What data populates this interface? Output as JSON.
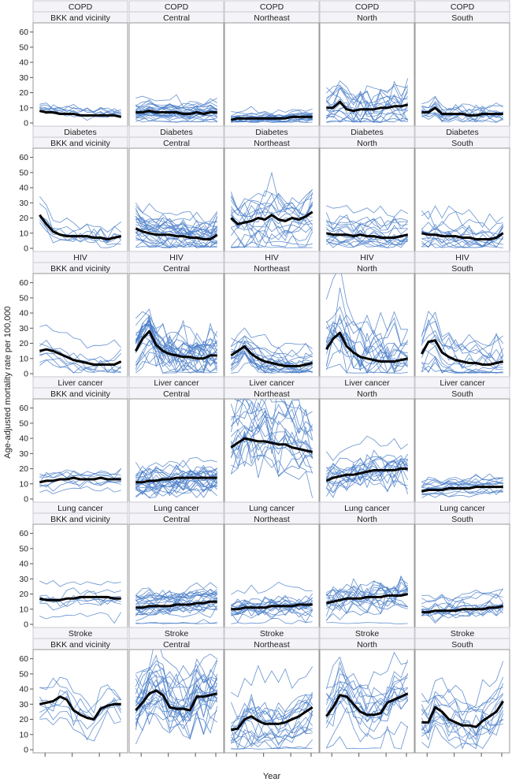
{
  "chart_data": {
    "type": "line",
    "layout": "small-multiples",
    "xlabel": "Year",
    "ylabel": "Age-adjusted mortality rate per 100,000",
    "ylim": [
      0,
      65
    ],
    "yticks": [
      0,
      10,
      20,
      30,
      40,
      50,
      60
    ],
    "x": [
      1,
      2,
      3,
      4,
      5,
      6,
      7,
      8,
      9,
      10,
      11,
      12,
      13
    ],
    "xtick_positions": [
      1.8,
      5.8,
      9.8,
      12.8
    ],
    "grid": false,
    "colors": {
      "province_lines": "#4a7ec8",
      "regional_mean": "#000000",
      "panel_border": "#999999",
      "strip_fill": "#f4f4f8"
    },
    "diseases": [
      "COPD",
      "Diabetes",
      "HIV",
      "Liver cancer",
      "Lung cancer",
      "Stroke"
    ],
    "regions": [
      "BKK and vicinity",
      "Central",
      "Northeast",
      "North",
      "South"
    ],
    "panels": [
      [
        {
          "disease": "COPD",
          "region": "BKK and vicinity",
          "provinces": 8,
          "spread": 2.5,
          "mean": [
            8,
            7,
            7,
            6,
            6,
            6,
            5,
            5,
            5,
            5,
            5,
            5,
            4
          ]
        },
        {
          "disease": "COPD",
          "region": "Central",
          "provinces": 25,
          "spread": 2.5,
          "mean": [
            7,
            7,
            8,
            7,
            7,
            7,
            7,
            6,
            6,
            7,
            6,
            7,
            7
          ]
        },
        {
          "disease": "COPD",
          "region": "Northeast",
          "provinces": 19,
          "spread": 2,
          "mean": [
            2,
            3,
            3,
            3,
            3,
            3,
            3,
            3,
            3,
            4,
            4,
            4,
            4
          ]
        },
        {
          "disease": "COPD",
          "region": "North",
          "provinces": 17,
          "spread": 8,
          "mean": [
            10,
            10,
            14,
            9,
            8,
            9,
            9,
            9,
            10,
            10,
            11,
            11,
            12
          ]
        },
        {
          "disease": "COPD",
          "region": "South",
          "provinces": 14,
          "spread": 3.5,
          "mean": [
            7,
            7,
            10,
            6,
            6,
            6,
            6,
            5,
            5,
            6,
            6,
            6,
            6
          ]
        }
      ],
      [
        {
          "disease": "Diabetes",
          "region": "BKK and vicinity",
          "provinces": 8,
          "spread": 4,
          "mean": [
            22,
            16,
            11,
            9,
            8,
            8,
            8,
            8,
            7,
            7,
            6,
            7,
            8
          ]
        },
        {
          "disease": "Diabetes",
          "region": "Central",
          "provinces": 25,
          "spread": 5,
          "mean": [
            13,
            11,
            10,
            9,
            9,
            9,
            8,
            8,
            7,
            7,
            6,
            6,
            9
          ]
        },
        {
          "disease": "Diabetes",
          "region": "Northeast",
          "provinces": 19,
          "spread": 9,
          "mean": [
            20,
            16,
            17,
            18,
            20,
            19,
            22,
            19,
            18,
            20,
            19,
            21,
            24
          ]
        },
        {
          "disease": "Diabetes",
          "region": "North",
          "provinces": 17,
          "spread": 4.5,
          "mean": [
            10,
            9,
            9,
            9,
            8,
            9,
            8,
            8,
            7,
            7,
            7,
            8,
            9
          ]
        },
        {
          "disease": "Diabetes",
          "region": "South",
          "provinces": 14,
          "spread": 6,
          "mean": [
            10,
            9,
            9,
            8,
            8,
            8,
            7,
            7,
            6,
            6,
            6,
            7,
            10
          ]
        }
      ],
      [
        {
          "disease": "HIV",
          "region": "BKK and vicinity",
          "provinces": 8,
          "spread": 4,
          "mean": [
            15,
            16,
            15,
            13,
            11,
            9,
            8,
            7,
            6,
            6,
            6,
            6,
            8
          ]
        },
        {
          "disease": "HIV",
          "region": "Central",
          "provinces": 25,
          "spread": 9,
          "mean": [
            15,
            23,
            28,
            19,
            15,
            13,
            12,
            11,
            11,
            10,
            10,
            12,
            12
          ]
        },
        {
          "disease": "HIV",
          "region": "Northeast",
          "provinces": 19,
          "spread": 5.5,
          "mean": [
            12,
            15,
            18,
            13,
            10,
            8,
            7,
            6,
            5,
            5,
            5,
            6,
            7
          ]
        },
        {
          "disease": "HIV",
          "region": "North",
          "provinces": 17,
          "spread": 12,
          "mean": [
            16,
            23,
            27,
            18,
            14,
            11,
            10,
            9,
            8,
            8,
            8,
            9,
            10
          ]
        },
        {
          "disease": "HIV",
          "region": "South",
          "provinces": 14,
          "spread": 7,
          "mean": [
            13,
            21,
            22,
            14,
            11,
            9,
            8,
            7,
            7,
            6,
            6,
            7,
            8
          ]
        }
      ],
      [
        {
          "disease": "Liver cancer",
          "region": "BKK and vicinity",
          "provinces": 8,
          "spread": 3,
          "mean": [
            11,
            12,
            12,
            13,
            13,
            14,
            13,
            13,
            13,
            14,
            13,
            13,
            13
          ]
        },
        {
          "disease": "Liver cancer",
          "region": "Central",
          "provinces": 25,
          "spread": 5,
          "mean": [
            11,
            11,
            12,
            12,
            13,
            13,
            14,
            14,
            14,
            14,
            14,
            14,
            14
          ]
        },
        {
          "disease": "Liver cancer",
          "region": "Northeast",
          "provinces": 19,
          "spread": 13,
          "mean": [
            34,
            37,
            40,
            39,
            38,
            38,
            37,
            36,
            36,
            34,
            33,
            32,
            31
          ]
        },
        {
          "disease": "Liver cancer",
          "region": "North",
          "provinces": 17,
          "spread": 7,
          "mean": [
            12,
            14,
            15,
            16,
            16,
            17,
            18,
            19,
            19,
            19,
            19,
            20,
            20
          ]
        },
        {
          "disease": "Liver cancer",
          "region": "South",
          "provinces": 14,
          "spread": 2.5,
          "mean": [
            5,
            6,
            6,
            6,
            7,
            7,
            7,
            7,
            8,
            8,
            8,
            8,
            8
          ]
        }
      ],
      [
        {
          "disease": "Lung cancer",
          "region": "BKK and vicinity",
          "provinces": 8,
          "spread": 3.5,
          "mean": [
            17,
            16,
            16,
            16,
            17,
            17,
            18,
            18,
            18,
            18,
            18,
            17,
            17
          ]
        },
        {
          "disease": "Lung cancer",
          "region": "Central",
          "provinces": 25,
          "spread": 4,
          "mean": [
            11,
            11,
            12,
            12,
            12,
            12,
            13,
            13,
            13,
            14,
            14,
            15,
            15
          ]
        },
        {
          "disease": "Lung cancer",
          "region": "Northeast",
          "provinces": 19,
          "spread": 4,
          "mean": [
            10,
            10,
            11,
            11,
            11,
            11,
            12,
            12,
            12,
            12,
            13,
            13,
            13
          ]
        },
        {
          "disease": "Lung cancer",
          "region": "North",
          "provinces": 17,
          "spread": 7,
          "mean": [
            14,
            15,
            16,
            17,
            17,
            17,
            18,
            18,
            18,
            19,
            19,
            19,
            20
          ]
        },
        {
          "disease": "Lung cancer",
          "region": "South",
          "provinces": 14,
          "spread": 4,
          "mean": [
            8,
            8,
            9,
            9,
            9,
            9,
            10,
            10,
            10,
            10,
            11,
            11,
            12
          ]
        }
      ],
      [
        {
          "disease": "Stroke",
          "region": "BKK and vicinity",
          "provinces": 8,
          "spread": 6,
          "mean": [
            30,
            31,
            32,
            35,
            33,
            26,
            23,
            21,
            20,
            27,
            29,
            30,
            30
          ]
        },
        {
          "disease": "Stroke",
          "region": "Central",
          "provinces": 25,
          "spread": 10,
          "mean": [
            26,
            31,
            37,
            39,
            36,
            28,
            27,
            27,
            26,
            35,
            35,
            36,
            37
          ]
        },
        {
          "disease": "Stroke",
          "region": "Northeast",
          "provinces": 19,
          "spread": 8,
          "mean": [
            13,
            14,
            20,
            22,
            19,
            17,
            17,
            17,
            18,
            20,
            22,
            25,
            28
          ]
        },
        {
          "disease": "Stroke",
          "region": "North",
          "provinces": 17,
          "spread": 10,
          "mean": [
            22,
            28,
            36,
            35,
            30,
            25,
            23,
            23,
            24,
            31,
            33,
            35,
            37
          ]
        },
        {
          "disease": "Stroke",
          "region": "South",
          "provinces": 14,
          "spread": 8,
          "mean": [
            18,
            18,
            28,
            25,
            20,
            18,
            16,
            16,
            15,
            19,
            22,
            25,
            32
          ]
        }
      ]
    ]
  }
}
